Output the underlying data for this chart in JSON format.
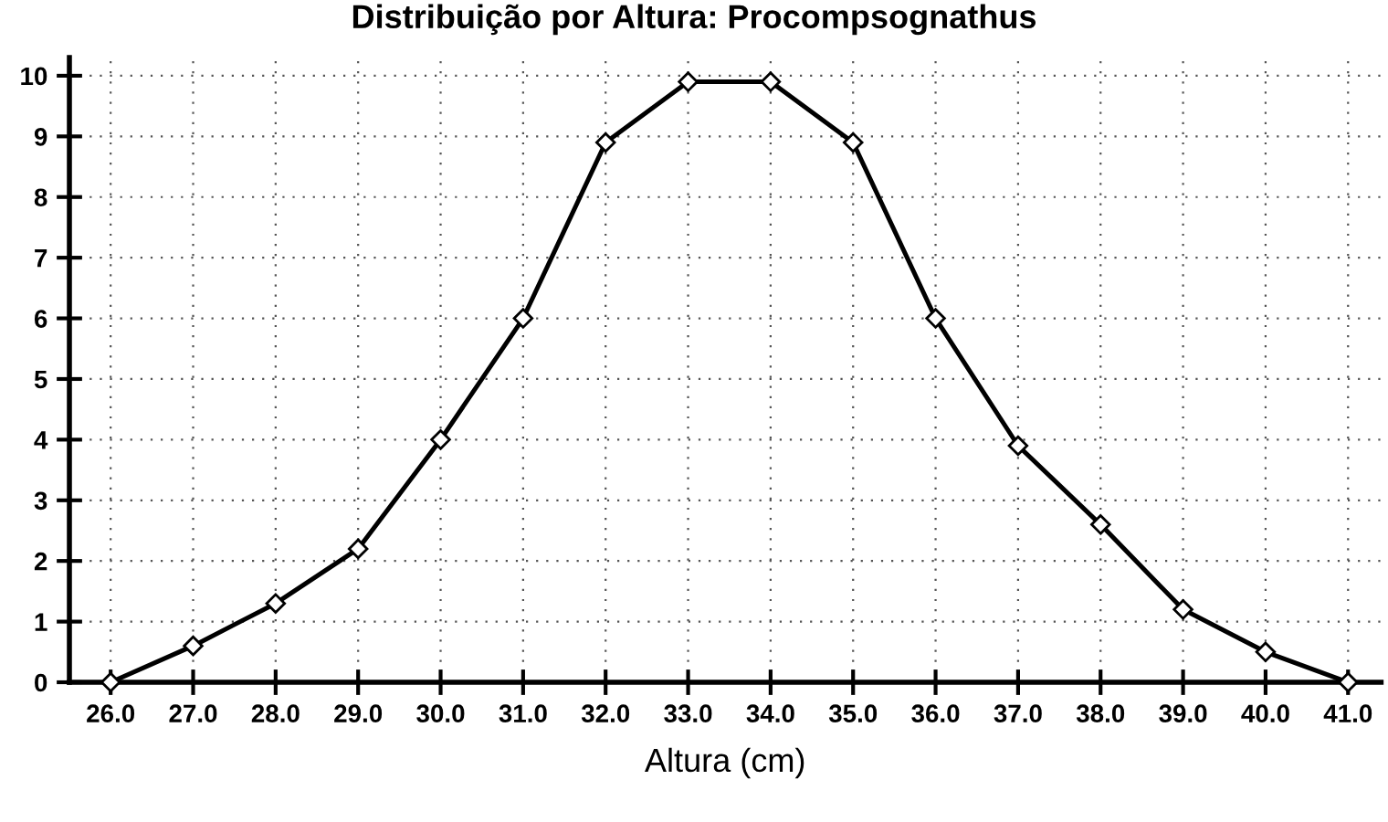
{
  "chart_data": {
    "type": "line",
    "title": "Distribuição por Altura: Procompsognathus",
    "xlabel": "Altura (cm)",
    "x": [
      26.0,
      27.0,
      28.0,
      29.0,
      30.0,
      31.0,
      32.0,
      33.0,
      34.0,
      35.0,
      36.0,
      37.0,
      38.0,
      39.0,
      40.0,
      41.0
    ],
    "series": [
      {
        "color": "#000000",
        "values": [
          0,
          0.6,
          1.3,
          2.2,
          4.0,
          6.0,
          8.9,
          9.9,
          9.9,
          8.9,
          6.0,
          3.9,
          2.6,
          1.2,
          0.5,
          0
        ]
      }
    ],
    "xlim": [
      25.5,
      41.4
    ],
    "ylim": [
      0,
      10.3
    ],
    "xticks": [
      {
        "value": 26,
        "label": "26.0"
      },
      {
        "value": 27,
        "label": "27.0"
      },
      {
        "value": 28,
        "label": "28.0"
      },
      {
        "value": 29,
        "label": "29.0"
      },
      {
        "value": 30,
        "label": "30.0"
      },
      {
        "value": 31,
        "label": "31.0"
      },
      {
        "value": 32,
        "label": "32.0"
      },
      {
        "value": 33,
        "label": "33.0"
      },
      {
        "value": 34,
        "label": "34.0"
      },
      {
        "value": 35,
        "label": "35.0"
      },
      {
        "value": 36,
        "label": "36.0"
      },
      {
        "value": 37,
        "label": "37.0"
      },
      {
        "value": 38,
        "label": "38.0"
      },
      {
        "value": 39,
        "label": "39.0"
      },
      {
        "value": 40,
        "label": "40.0"
      },
      {
        "value": 41,
        "label": "41.0"
      }
    ],
    "yticks": [
      0,
      1,
      2,
      3,
      4,
      5,
      6,
      7,
      8,
      9,
      10
    ],
    "grid": true,
    "marker": "diamond",
    "line_style": "solid"
  }
}
